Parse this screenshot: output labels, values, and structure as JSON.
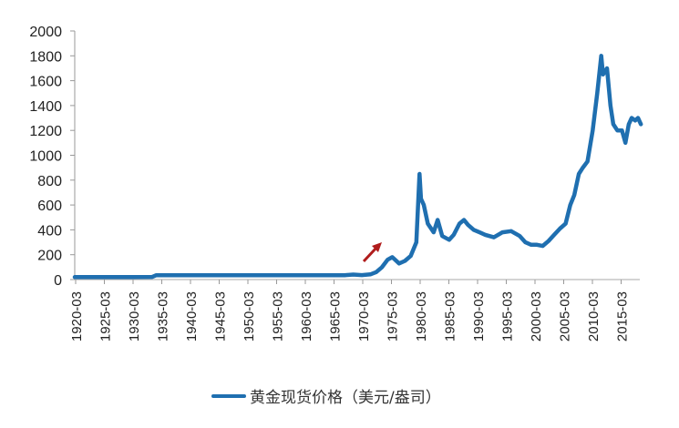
{
  "chart_data": {
    "type": "line",
    "title": "",
    "xlabel": "",
    "ylabel": "",
    "ylim": [
      0,
      2000
    ],
    "y_ticks": [
      "0",
      "200",
      "400",
      "600",
      "800",
      "1000",
      "1200",
      "1400",
      "1600",
      "1800",
      "2000"
    ],
    "x_ticks": [
      "1920-03",
      "1925-03",
      "1930-03",
      "1935-03",
      "1940-03",
      "1945-03",
      "1950-03",
      "1955-03",
      "1960-03",
      "1965-03",
      "1970-03",
      "1975-03",
      "1980-03",
      "1985-03",
      "1990-03",
      "1995-03",
      "2000-03",
      "2005-03",
      "2010-03",
      "2015-03"
    ],
    "grid": false,
    "legend_position": "bottom",
    "series": [
      {
        "name": "黄金现货价格（美元/盎司）",
        "color": "#1f6fb0",
        "x": [
          1920,
          1925,
          1930,
          1933.5,
          1934.2,
          1940,
          1950,
          1960,
          1967,
          1968.5,
          1970,
          1971.5,
          1972.5,
          1973.5,
          1974.5,
          1975.3,
          1976.5,
          1977.5,
          1978.5,
          1979.5,
          1980.05,
          1980.3,
          1980.8,
          1981.5,
          1982.5,
          1983.2,
          1984,
          1985.2,
          1986,
          1987,
          1987.8,
          1988.5,
          1989.5,
          1990.5,
          1991.5,
          1993,
          1994.5,
          1996,
          1997.5,
          1998.5,
          1999.5,
          2000.5,
          2001.5,
          2002.5,
          2003.5,
          2004.5,
          2005.5,
          2006.3,
          2007,
          2007.8,
          2008.5,
          2009.3,
          2010.2,
          2011,
          2011.7,
          2012,
          2012.7,
          2013.3,
          2013.8,
          2014.5,
          2015.3,
          2015.9,
          2016.5,
          2017,
          2017.6,
          2018.1,
          2018.6
        ],
        "values": [
          20,
          20,
          20,
          21,
          35,
          35,
          35,
          35,
          35,
          40,
          36,
          42,
          60,
          100,
          160,
          180,
          130,
          150,
          190,
          300,
          850,
          650,
          600,
          450,
          380,
          480,
          350,
          320,
          360,
          450,
          480,
          440,
          400,
          380,
          360,
          340,
          380,
          390,
          350,
          300,
          280,
          280,
          270,
          310,
          360,
          410,
          450,
          600,
          680,
          850,
          900,
          950,
          1200,
          1500,
          1800,
          1650,
          1700,
          1400,
          1250,
          1200,
          1200,
          1100,
          1250,
          1300,
          1280,
          1300,
          1250
        ]
      }
    ],
    "annotations": [
      {
        "type": "arrow",
        "color": "#b01c1c",
        "position": "near 1972",
        "direction": "up-right"
      }
    ]
  },
  "legend": {
    "label": "黄金现货价格（美元/盎司）"
  }
}
